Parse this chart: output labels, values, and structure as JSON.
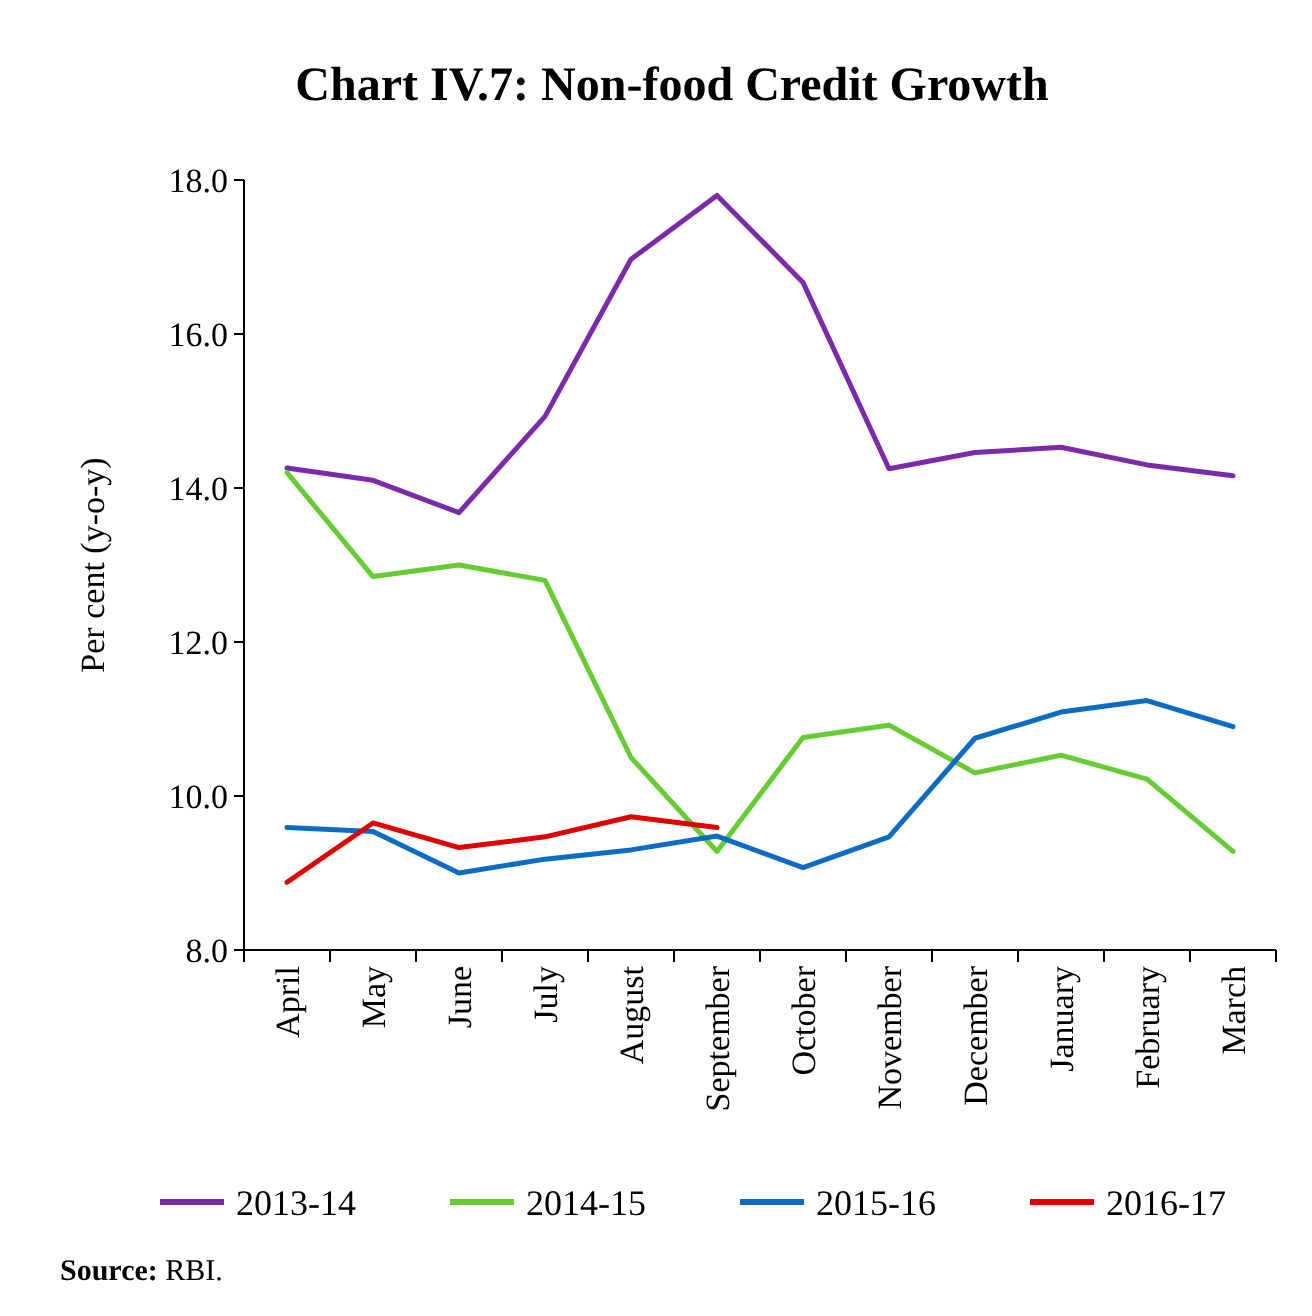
{
  "chart_data": {
    "type": "line",
    "title": "Chart IV.7: Non-food Credit Growth",
    "ylabel": "Per cent (y-o-y)",
    "categories": [
      "April",
      "May",
      "June",
      "July",
      "August",
      "September",
      "October",
      "November",
      "December",
      "January",
      "February",
      "March"
    ],
    "series": [
      {
        "name": "2013-14",
        "color": "#7b2aab",
        "values": [
          14.26,
          14.1,
          13.68,
          14.93,
          16.97,
          17.8,
          16.67,
          14.25,
          14.46,
          14.53,
          14.3,
          14.16
        ]
      },
      {
        "name": "2014-15",
        "color": "#66cc33",
        "values": [
          14.2,
          12.85,
          13.0,
          12.8,
          10.5,
          9.28,
          10.76,
          10.92,
          10.3,
          10.53,
          10.22,
          9.28
        ]
      },
      {
        "name": "2015-16",
        "color": "#0a6cc4",
        "values": [
          9.59,
          9.54,
          9.0,
          9.18,
          9.3,
          9.48,
          9.07,
          9.47,
          10.75,
          11.09,
          11.24,
          10.9
        ]
      },
      {
        "name": "2016-17",
        "color": "#e00000",
        "values": [
          8.88,
          9.65,
          9.33,
          9.47,
          9.73,
          9.59,
          null,
          null,
          null,
          null,
          null,
          null
        ]
      }
    ],
    "ylim": [
      8,
      18
    ],
    "yticks": [
      {
        "value": 8,
        "label": "8.0"
      },
      {
        "value": 10,
        "label": "10.0"
      },
      {
        "value": 12,
        "label": "12.0"
      },
      {
        "value": 14,
        "label": "14.0"
      },
      {
        "value": 16,
        "label": "16.0"
      },
      {
        "value": 18,
        "label": "18.0"
      }
    ],
    "grid": false,
    "legend": "bottom",
    "line_style": "solid",
    "annotations": [
      "Source: RBI."
    ]
  }
}
